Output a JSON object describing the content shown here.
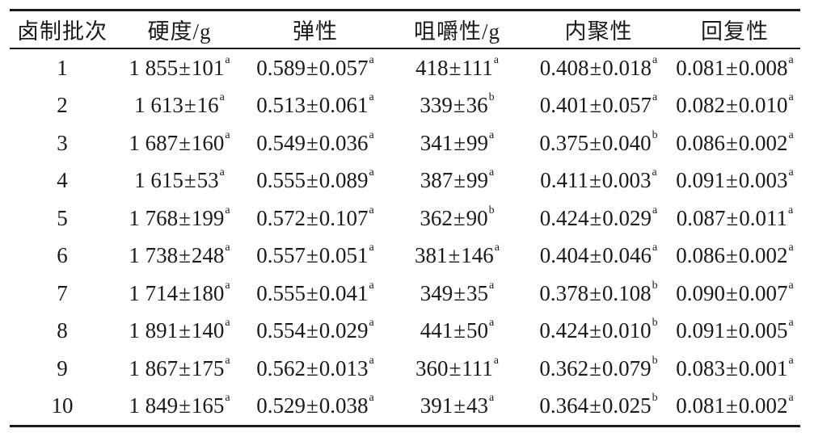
{
  "table": {
    "headers": [
      "卤制批次",
      "硬度/g",
      "弹性",
      "咀嚼性/g",
      "内聚性",
      "回复性"
    ],
    "rows": [
      {
        "batch": "1",
        "cells": [
          {
            "v": "1 855",
            "e": "101",
            "s": "a"
          },
          {
            "v": "0.589",
            "e": "0.057",
            "s": "a"
          },
          {
            "v": "418",
            "e": "111",
            "s": "a"
          },
          {
            "v": "0.408",
            "e": "0.018",
            "s": "a"
          },
          {
            "v": "0.081",
            "e": "0.008",
            "s": "a"
          }
        ]
      },
      {
        "batch": "2",
        "cells": [
          {
            "v": "1 613",
            "e": "16",
            "s": "a"
          },
          {
            "v": "0.513",
            "e": "0.061",
            "s": "a"
          },
          {
            "v": "339",
            "e": "36",
            "s": "b"
          },
          {
            "v": "0.401",
            "e": "0.057",
            "s": "a"
          },
          {
            "v": "0.082",
            "e": "0.010",
            "s": "a"
          }
        ]
      },
      {
        "batch": "3",
        "cells": [
          {
            "v": "1 687",
            "e": "160",
            "s": "a"
          },
          {
            "v": "0.549",
            "e": "0.036",
            "s": "a"
          },
          {
            "v": "341",
            "e": "99",
            "s": "a"
          },
          {
            "v": "0.375",
            "e": "0.040",
            "s": "b"
          },
          {
            "v": "0.086",
            "e": "0.002",
            "s": "a"
          }
        ]
      },
      {
        "batch": "4",
        "cells": [
          {
            "v": "1 615",
            "e": "53",
            "s": "a"
          },
          {
            "v": "0.555",
            "e": "0.089",
            "s": "a"
          },
          {
            "v": "387",
            "e": "99",
            "s": "a"
          },
          {
            "v": "0.411",
            "e": "0.003",
            "s": "a"
          },
          {
            "v": "0.091",
            "e": "0.003",
            "s": "a"
          }
        ]
      },
      {
        "batch": "5",
        "cells": [
          {
            "v": "1 768",
            "e": "199",
            "s": "a"
          },
          {
            "v": "0.572",
            "e": "0.107",
            "s": "a"
          },
          {
            "v": "362",
            "e": "90",
            "s": "b"
          },
          {
            "v": "0.424",
            "e": "0.029",
            "s": "a"
          },
          {
            "v": "0.087",
            "e": "0.011",
            "s": "a"
          }
        ]
      },
      {
        "batch": "6",
        "cells": [
          {
            "v": "1 738",
            "e": "248",
            "s": "a"
          },
          {
            "v": "0.557",
            "e": "0.051",
            "s": "a"
          },
          {
            "v": "381",
            "e": "146",
            "s": "a"
          },
          {
            "v": "0.404",
            "e": "0.046",
            "s": "a"
          },
          {
            "v": "0.086",
            "e": "0.002",
            "s": "a"
          }
        ]
      },
      {
        "batch": "7",
        "cells": [
          {
            "v": "1 714",
            "e": "180",
            "s": "a"
          },
          {
            "v": "0.555",
            "e": "0.041",
            "s": "a"
          },
          {
            "v": "349",
            "e": "35",
            "s": "a"
          },
          {
            "v": "0.378",
            "e": "0.108",
            "s": "b"
          },
          {
            "v": "0.090",
            "e": "0.007",
            "s": "a"
          }
        ]
      },
      {
        "batch": "8",
        "cells": [
          {
            "v": "1 891",
            "e": "140",
            "s": "a"
          },
          {
            "v": "0.554",
            "e": "0.029",
            "s": "a"
          },
          {
            "v": "441",
            "e": "50",
            "s": "a"
          },
          {
            "v": "0.424",
            "e": "0.010",
            "s": "b"
          },
          {
            "v": "0.091",
            "e": "0.005",
            "s": "a"
          }
        ]
      },
      {
        "batch": "9",
        "cells": [
          {
            "v": "1 867",
            "e": "175",
            "s": "a"
          },
          {
            "v": "0.562",
            "e": "0.013",
            "s": "a"
          },
          {
            "v": "360",
            "e": "111",
            "s": "a"
          },
          {
            "v": "0.362",
            "e": "0.079",
            "s": "b"
          },
          {
            "v": "0.083",
            "e": "0.001",
            "s": "a"
          }
        ]
      },
      {
        "batch": "10",
        "cells": [
          {
            "v": "1 849",
            "e": "165",
            "s": "a"
          },
          {
            "v": "0.529",
            "e": "0.038",
            "s": "a"
          },
          {
            "v": "391",
            "e": "43",
            "s": "a"
          },
          {
            "v": "0.364",
            "e": "0.025",
            "s": "b"
          },
          {
            "v": "0.081",
            "e": "0.002",
            "s": "a"
          }
        ]
      }
    ]
  }
}
